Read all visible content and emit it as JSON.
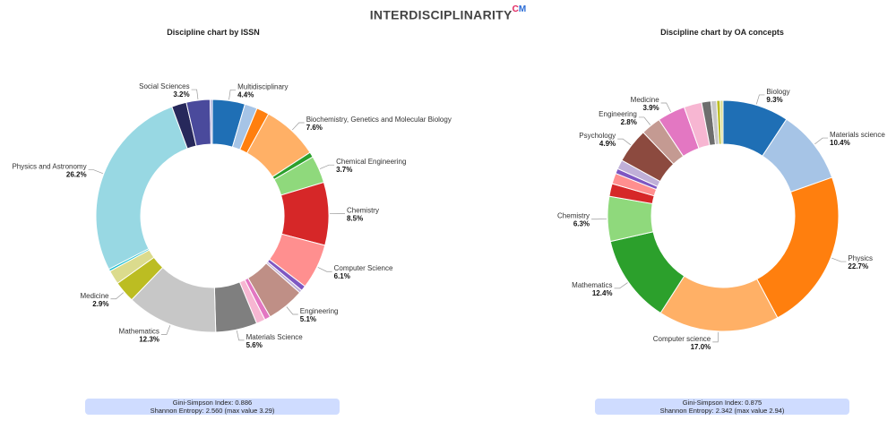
{
  "header": {
    "brand": "INTERDISCIPLINARITY",
    "brand_sup_c": "C",
    "brand_sup_m": "M"
  },
  "chart_data": [
    {
      "type": "pie",
      "title": "Discipline chart by ISSN",
      "donut": true,
      "slices": [
        {
          "label": "Multidisciplinary",
          "value": 4.4,
          "color": "#1f6fb5",
          "show": true
        },
        {
          "label": "",
          "value": 1.7,
          "color": "#a6c4e6",
          "show": false
        },
        {
          "label": "",
          "value": 1.7,
          "color": "#ff7f0e",
          "show": false
        },
        {
          "label": "Biochemistry, Genetics and Molecular Biology",
          "value": 7.6,
          "color": "#ffb066",
          "show": true
        },
        {
          "label": "",
          "value": 0.7,
          "color": "#2ca02c",
          "show": false
        },
        {
          "label": "Chemical Engineering",
          "value": 3.7,
          "color": "#8fd97c",
          "show": true
        },
        {
          "label": "Chemistry",
          "value": 8.5,
          "color": "#d62728",
          "show": true
        },
        {
          "label": "Computer Science",
          "value": 6.1,
          "color": "#ff8f8f",
          "show": true
        },
        {
          "label": "",
          "value": 0.7,
          "color": "#7e57c2",
          "show": false
        },
        {
          "label": "",
          "value": 0.4,
          "color": "#c0b0d8",
          "show": false
        },
        {
          "label": "Engineering",
          "value": 5.1,
          "color": "#bf8f86",
          "show": true
        },
        {
          "label": "",
          "value": 0.8,
          "color": "#e377c2",
          "show": false
        },
        {
          "label": "",
          "value": 1.2,
          "color": "#f7b6d2",
          "show": false
        },
        {
          "label": "Materials Science",
          "value": 5.6,
          "color": "#7f7f7f",
          "show": true
        },
        {
          "label": "Mathematics",
          "value": 12.3,
          "color": "#c7c7c7",
          "show": true
        },
        {
          "label": "Medicine",
          "value": 2.9,
          "color": "#bcbd22",
          "show": true
        },
        {
          "label": "",
          "value": 1.9,
          "color": "#dbdb8d",
          "show": false
        },
        {
          "label": "",
          "value": 0.3,
          "color": "#17becf",
          "show": false
        },
        {
          "label": "Physics and Astronomy",
          "value": 26.2,
          "color": "#98d8e3",
          "show": true
        },
        {
          "label": "",
          "value": 2.0,
          "color": "#27285b",
          "show": false
        },
        {
          "label": "Social Sciences",
          "value": 3.2,
          "color": "#4a4a9c",
          "show": true
        },
        {
          "label": "",
          "value": 0.3,
          "color": "#a9a9d9",
          "show": false
        }
      ],
      "gini_simpson": "Gini-Simpson Index: 0.886",
      "shannon": "Shannon Entropy: 2.560 (max value 3.29)"
    },
    {
      "type": "pie",
      "title": "Discipline chart by OA concepts",
      "donut": true,
      "slices": [
        {
          "label": "Biology",
          "value": 9.3,
          "color": "#1f6fb5",
          "show": true
        },
        {
          "label": "Materials science",
          "value": 10.4,
          "color": "#a6c4e6",
          "show": true
        },
        {
          "label": "Physics",
          "value": 22.7,
          "color": "#ff7f0e",
          "show": true
        },
        {
          "label": "Computer science",
          "value": 17.0,
          "color": "#ffb066",
          "show": true
        },
        {
          "label": "Mathematics",
          "value": 12.4,
          "color": "#2ca02c",
          "show": true
        },
        {
          "label": "Chemistry",
          "value": 6.3,
          "color": "#8fd97c",
          "show": true
        },
        {
          "label": "",
          "value": 1.8,
          "color": "#d62728",
          "show": false
        },
        {
          "label": "",
          "value": 1.5,
          "color": "#ff8f8f",
          "show": false
        },
        {
          "label": "",
          "value": 0.7,
          "color": "#7e57c2",
          "show": false
        },
        {
          "label": "",
          "value": 1.3,
          "color": "#c0b0d8",
          "show": false
        },
        {
          "label": "Psychology",
          "value": 4.9,
          "color": "#8c4a3f",
          "show": true
        },
        {
          "label": "Engineering",
          "value": 2.8,
          "color": "#c49a92",
          "show": true
        },
        {
          "label": "Medicine",
          "value": 3.9,
          "color": "#e377c2",
          "show": true
        },
        {
          "label": "",
          "value": 2.5,
          "color": "#f7b6d2",
          "show": false
        },
        {
          "label": "",
          "value": 1.3,
          "color": "#6e6e6e",
          "show": false
        },
        {
          "label": "",
          "value": 0.8,
          "color": "#c7c7c7",
          "show": false
        },
        {
          "label": "",
          "value": 0.5,
          "color": "#bcbd22",
          "show": false
        },
        {
          "label": "",
          "value": 0.4,
          "color": "#dbdb8d",
          "show": false
        }
      ],
      "gini_simpson": "Gini-Simpson Index: 0.875",
      "shannon": "Shannon Entropy: 2.342 (max value 2.94)"
    }
  ]
}
